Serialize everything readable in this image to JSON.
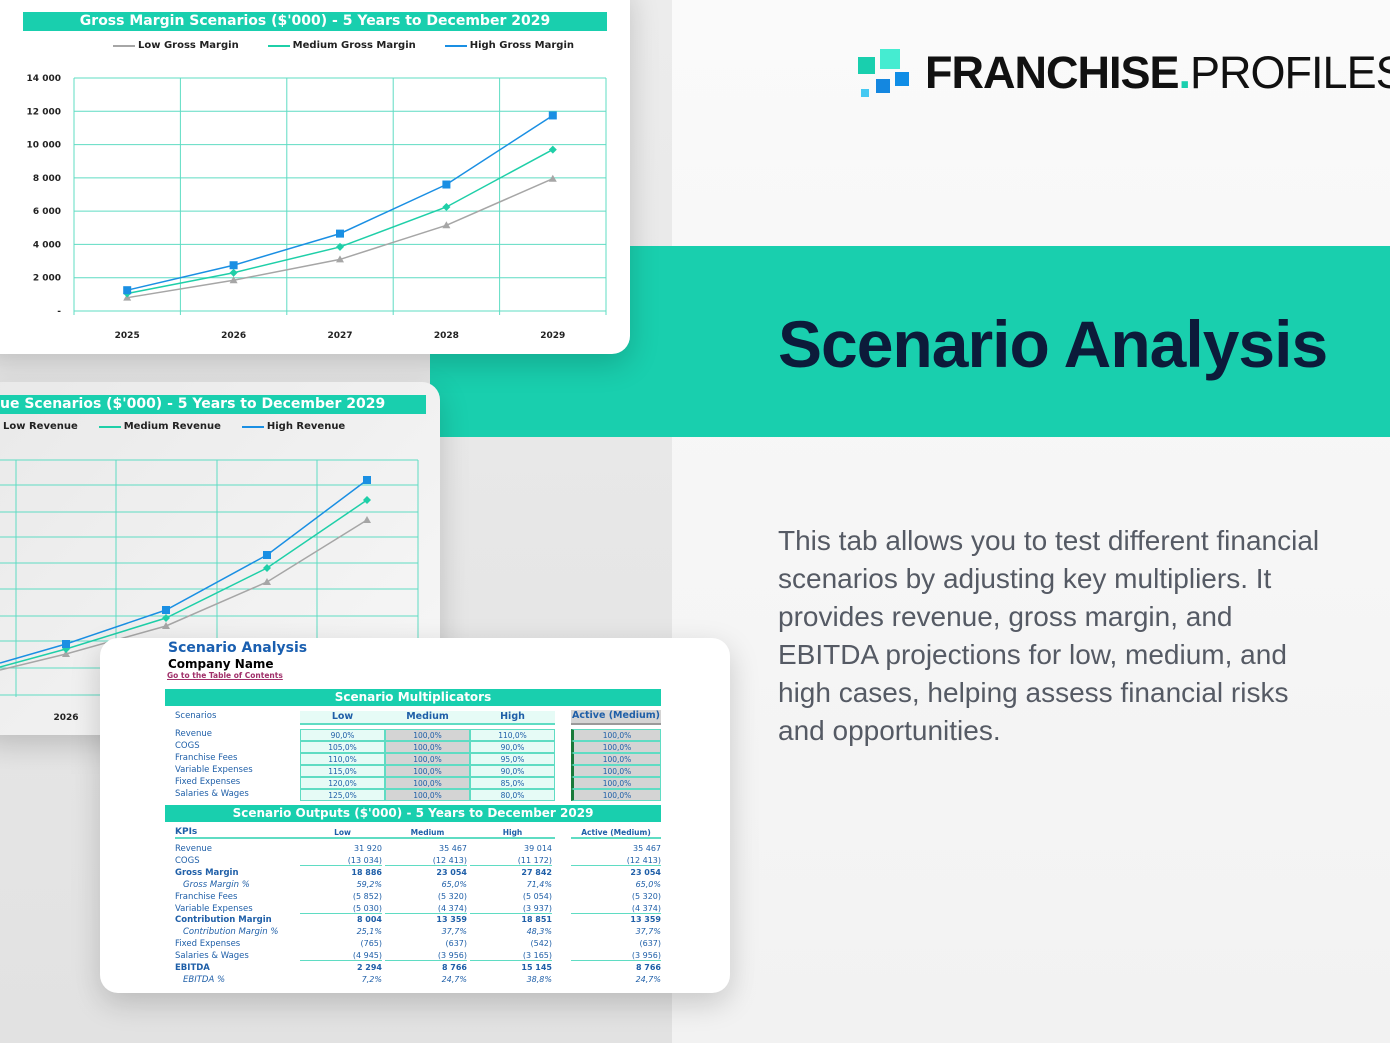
{
  "brand": {
    "name_bold": "FRANCHISE",
    "dot": ".",
    "name_light": "PROFILES",
    "colors": [
      "#19cfae",
      "#45ecd1",
      "#1487e0",
      "#0f8de6",
      "#45c9f2"
    ]
  },
  "hero": {
    "title": "Scenario Analysis",
    "description": "This tab allows you to test different financial scenarios by adjusting key multipliers. It provides revenue, gross margin, and EBITDA projections for low, medium, and high cases, helping assess financial risks and opportunities."
  },
  "colors": {
    "accent": "#19cfae",
    "low": "#a6a6a6",
    "medium": "#1fcfa8",
    "high": "#1a8fe3",
    "text_blue": "#1f5fa8"
  },
  "chart_data": [
    {
      "type": "line",
      "title": "Gross Margin Scenarios ($'000) - 5 Years to December 2029",
      "categories": [
        "2025",
        "2026",
        "2027",
        "2028",
        "2029"
      ],
      "ylim": [
        0,
        14000
      ],
      "yticks": [
        "-",
        "2 000",
        "4 000",
        "6 000",
        "8 000",
        "10 000",
        "12 000",
        "14 000"
      ],
      "grid": true,
      "legend": "top",
      "series": [
        {
          "name": "Low Gross Margin",
          "values": [
            800,
            1850,
            3100,
            5150,
            7950
          ],
          "marker": "triangle"
        },
        {
          "name": "Medium Gross Margin",
          "values": [
            1050,
            2300,
            3850,
            6250,
            9700
          ],
          "marker": "diamond"
        },
        {
          "name": "High Gross Margin",
          "values": [
            1250,
            2750,
            4650,
            7600,
            11750
          ],
          "marker": "square"
        }
      ]
    },
    {
      "type": "line",
      "title": "ue Scenarios ($'000) - 5 Years to December 2029",
      "categories": [
        "2026"
      ],
      "grid": true,
      "legend": "top",
      "series": [
        {
          "name": "Low Revenue"
        },
        {
          "name": "Medium Revenue"
        },
        {
          "name": "High Revenue"
        }
      ]
    }
  ],
  "sheet": {
    "title": "Scenario Analysis",
    "company": "Company Name",
    "toc_link": "Go to the Table of Contents",
    "multiplicators": {
      "title": "Scenario Multiplicators",
      "row_header": "Scenarios",
      "columns": [
        "Low",
        "Medium",
        "High"
      ],
      "active_header": "Active (Medium)",
      "rows": [
        {
          "label": "Revenue",
          "values": [
            "90,0%",
            "100,0%",
            "110,0%"
          ],
          "active": "100,0%"
        },
        {
          "label": "COGS",
          "values": [
            "105,0%",
            "100,0%",
            "90,0%"
          ],
          "active": "100,0%"
        },
        {
          "label": "Franchise Fees",
          "values": [
            "110,0%",
            "100,0%",
            "95,0%"
          ],
          "active": "100,0%"
        },
        {
          "label": "Variable Expenses",
          "values": [
            "115,0%",
            "100,0%",
            "90,0%"
          ],
          "active": "100,0%"
        },
        {
          "label": "Fixed Expenses",
          "values": [
            "120,0%",
            "100,0%",
            "85,0%"
          ],
          "active": "100,0%"
        },
        {
          "label": "Salaries & Wages",
          "values": [
            "125,0%",
            "100,0%",
            "80,0%"
          ],
          "active": "100,0%"
        }
      ]
    },
    "outputs": {
      "title": "Scenario Outputs ($'000) - 5 Years to December 2029",
      "row_header": "KPIs",
      "columns": [
        "Low",
        "Medium",
        "High"
      ],
      "active_header": "Active (Medium)",
      "rows": [
        {
          "label": "Revenue",
          "values": [
            "31 920",
            "35 467",
            "39 014"
          ],
          "active": "35 467",
          "style": "normal"
        },
        {
          "label": "COGS",
          "values": [
            "(13 034)",
            "(12 413)",
            "(11 172)"
          ],
          "active": "(12 413)",
          "style": "normal",
          "underline": true
        },
        {
          "label": "Gross Margin",
          "values": [
            "18 886",
            "23 054",
            "27 842"
          ],
          "active": "23 054",
          "style": "bold"
        },
        {
          "label": "Gross Margin %",
          "values": [
            "59,2%",
            "65,0%",
            "71,4%"
          ],
          "active": "65,0%",
          "style": "italic"
        },
        {
          "label": "Franchise Fees",
          "values": [
            "(5 852)",
            "(5 320)",
            "(5 054)"
          ],
          "active": "(5 320)",
          "style": "normal"
        },
        {
          "label": "Variable Expenses",
          "values": [
            "(5 030)",
            "(4 374)",
            "(3 937)"
          ],
          "active": "(4 374)",
          "style": "normal",
          "underline": true
        },
        {
          "label": "Contribution Margin",
          "values": [
            "8 004",
            "13 359",
            "18 851"
          ],
          "active": "13 359",
          "style": "bold"
        },
        {
          "label": "Contribution Margin %",
          "values": [
            "25,1%",
            "37,7%",
            "48,3%"
          ],
          "active": "37,7%",
          "style": "italic"
        },
        {
          "label": "Fixed Expenses",
          "values": [
            "(765)",
            "(637)",
            "(542)"
          ],
          "active": "(637)",
          "style": "normal"
        },
        {
          "label": "Salaries & Wages",
          "values": [
            "(4 945)",
            "(3 956)",
            "(3 165)"
          ],
          "active": "(3 956)",
          "style": "normal",
          "underline": true
        },
        {
          "label": "EBITDA",
          "values": [
            "2 294",
            "8 766",
            "15 145"
          ],
          "active": "8 766",
          "style": "bold"
        },
        {
          "label": "EBITDA %",
          "values": [
            "7,2%",
            "24,7%",
            "38,8%"
          ],
          "active": "24,7%",
          "style": "italic"
        }
      ]
    }
  }
}
